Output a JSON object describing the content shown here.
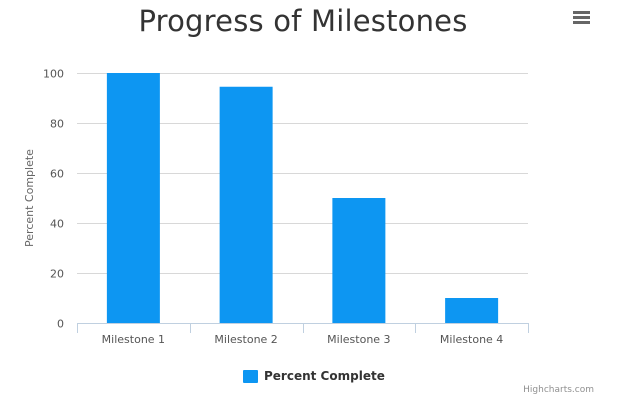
{
  "chart_data": {
    "type": "bar",
    "title": "Progress of Milestones",
    "xlabel": "",
    "ylabel": "Percent Complete",
    "categories": [
      "Milestone 1",
      "Milestone 2",
      "Milestone 3",
      "Milestone 4"
    ],
    "series": [
      {
        "name": "Percent Complete",
        "values": [
          100,
          94.5,
          50,
          10
        ],
        "color": "#0d96f2"
      }
    ],
    "ylim": [
      0,
      100
    ],
    "yticks": [
      0,
      20,
      40,
      60,
      80,
      100
    ],
    "grid": true,
    "legend_position": "bottom-center"
  },
  "credits": "Highcharts.com",
  "menu": {
    "icon": "hamburger-menu-icon"
  },
  "colors": {
    "bar": "#0d96f2",
    "grid": "#d8d8d8",
    "title": "#333333"
  }
}
